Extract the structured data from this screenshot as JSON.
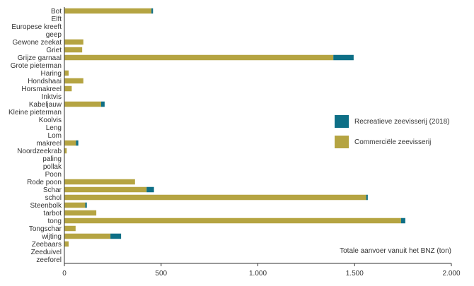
{
  "chart_data": {
    "type": "bar",
    "orientation": "horizontal",
    "stacked": true,
    "categories": [
      "Bot",
      "Elft",
      "Europese kreeft",
      "geep",
      "Gewone zeekat",
      "Griet",
      "Grijze garnaal",
      "Grote pieterman",
      "Haring",
      "Hondshaai",
      "Horsmakreel",
      "Inktvis",
      "Kabeljauw",
      "Kleine pieterman",
      "Koolvis",
      "Leng",
      "Lom",
      "makreel",
      "Noordzeekrab",
      "paling",
      "pollak",
      "Poon",
      "Rode poon",
      "Schar",
      "schol",
      "Steenbolk",
      "tarbot",
      "tong",
      "Tongschar",
      "wijting",
      "Zeebaars",
      "Zeeduivel",
      "zeeforel"
    ],
    "series": [
      {
        "name": "Commerciële zeevisserij",
        "color": "#b5a442",
        "values": [
          450,
          0,
          0,
          0,
          98,
          92,
          1390,
          0,
          22,
          98,
          38,
          0,
          190,
          0,
          0,
          0,
          0,
          60,
          12,
          0,
          0,
          0,
          365,
          425,
          1560,
          108,
          165,
          1740,
          58,
          238,
          22,
          0,
          0
        ]
      },
      {
        "name": "Recreatieve zeevisserij (2018)",
        "color": "#0e6f86",
        "values": [
          8,
          0,
          0,
          0,
          0,
          0,
          105,
          0,
          0,
          0,
          0,
          0,
          18,
          0,
          0,
          0,
          0,
          12,
          0,
          0,
          0,
          0,
          0,
          38,
          8,
          8,
          0,
          22,
          0,
          55,
          0,
          0,
          0
        ]
      }
    ],
    "xlim": [
      0,
      2000
    ],
    "xticks": [
      "0",
      "500",
      "1.000",
      "1.500",
      "2.000"
    ],
    "xtick_values": [
      0,
      500,
      1000,
      1500,
      2000
    ],
    "xlabel": "Totale aanvoer vanuit het BNZ (ton)",
    "legend": [
      {
        "label": "Recreatieve zeevisserij (2018)",
        "color": "#0e6f86"
      },
      {
        "label": "Commerciële zeevisserij",
        "color": "#b5a442"
      }
    ],
    "legend_position": "right",
    "grid": false
  }
}
